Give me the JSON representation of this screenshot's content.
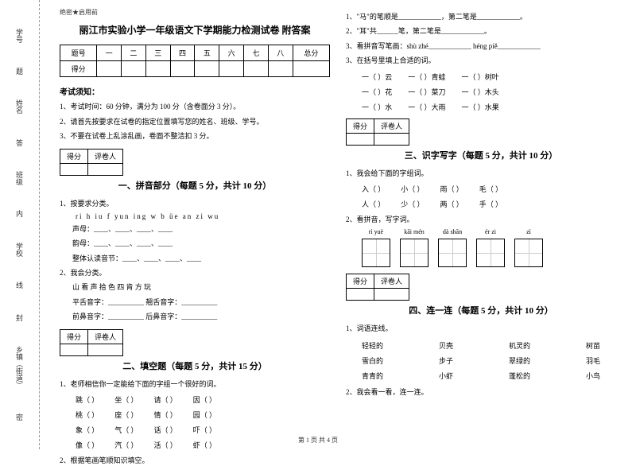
{
  "margin": {
    "labels": [
      "学号",
      "姓名",
      "班级",
      "学校",
      "乡镇（街道）"
    ],
    "hints": [
      "题",
      "答",
      "内",
      "线",
      "封",
      "密"
    ]
  },
  "headerTag": "绝密★启用前",
  "title": "丽江市实验小学一年级语文下学期能力检测试卷 附答案",
  "scoreTable": {
    "row1": [
      "题号",
      "一",
      "二",
      "三",
      "四",
      "五",
      "六",
      "七",
      "八",
      "总分"
    ],
    "row2": [
      "得分",
      "",
      "",
      "",
      "",
      "",
      "",
      "",
      "",
      ""
    ]
  },
  "noticeTitle": "考试须知：",
  "notices": [
    "1、考试时间：60 分钟，满分为 100 分（含卷面分 3 分）。",
    "2、请首先按要求在试卷的指定位置填写您的姓名、班级、学号。",
    "3、不要在试卷上乱涂乱画，卷面不整洁扣 3 分。"
  ],
  "scoreBox": {
    "c1": "得分",
    "c2": "评卷人"
  },
  "sec1": {
    "title": "一、拼音部分（每题 5 分，共计 10 分）",
    "q1": "1、按要求分类。",
    "pinyin": "ri  h  iu  f  yun  ing  w  b  üe  an  zi  wu",
    "l1": "声母：____、____、____、____",
    "l2": "韵母：____、____、____、____",
    "l3": "整体认读音节：____、____、____、____",
    "q2": "2、我会分类。",
    "q2a": "山 看 声 拾  色 四  肯 方  玩",
    "q2b": "平舌音字：__________          翘舌音字：__________",
    "q2c": "前鼻音字：__________          后鼻音字：__________"
  },
  "sec2": {
    "title": "二、填空题（每题 5 分，共计 15 分）",
    "q1": "1、老师相信你一定能给下面的字组一个很好的词。",
    "rows": [
      [
        "跳（      ）",
        "坐（      ）",
        "请（      ）",
        "因（      ）"
      ],
      [
        "桃（      ）",
        "座（      ）",
        "情（      ）",
        "园（      ）"
      ],
      [
        "象（      ）",
        "气（      ）",
        "话（      ）",
        "吓（      ）"
      ],
      [
        "像（      ）",
        "汽（      ）",
        "活（      ）",
        "虾（      ）"
      ]
    ],
    "q2": "2、根据笔画笔顺知识填空。"
  },
  "right": {
    "l1": "1、\"马\"的笔顺是____________，第二笔是____________。",
    "l2": "2、\"耳\"共______笔，第二笔是____________。",
    "l3": "3、看拼音写笔画：shù zhé____________  héng piě____________",
    "q3": "3、在括号里填上合适的词。",
    "rows": [
      [
        "一（      ）云",
        "一（      ）青蛙",
        "一（      ）树叶"
      ],
      [
        "一（      ）花",
        "一（      ）菜刀",
        "一（      ）木头"
      ],
      [
        "一（      ）水",
        "一（      ）大雨",
        "一（      ）水果"
      ]
    ]
  },
  "sec3": {
    "title": "三、识字写字（每题 5 分，共计 10 分）",
    "q1": "1、我会给下面的字组词。",
    "r1": [
      "入（      ）",
      "小（      ）",
      "雨（      ）",
      "毛（      ）"
    ],
    "r2": [
      "人（      ）",
      "少（      ）",
      "两（      ）",
      "手（      ）"
    ],
    "q2": "2、看拼音，写字词。",
    "pinyins": [
      "rì yuè",
      "kāi mén",
      "dà shān",
      "ér zi",
      "zì"
    ]
  },
  "sec4": {
    "title": "四、连一连（每题 5 分，共计 10 分）",
    "q1": "1、词语连线。",
    "rows": [
      [
        "轻轻的",
        "贝壳",
        "机灵的",
        "树苗"
      ],
      [
        "雪白的",
        "步子",
        "翠绿的",
        "羽毛"
      ],
      [
        "青青的",
        "小虾",
        "蓬松的",
        "小鸟"
      ]
    ],
    "q2": "2、我会看一看，连一连。"
  },
  "footer": "第 1 页 共 4 页"
}
